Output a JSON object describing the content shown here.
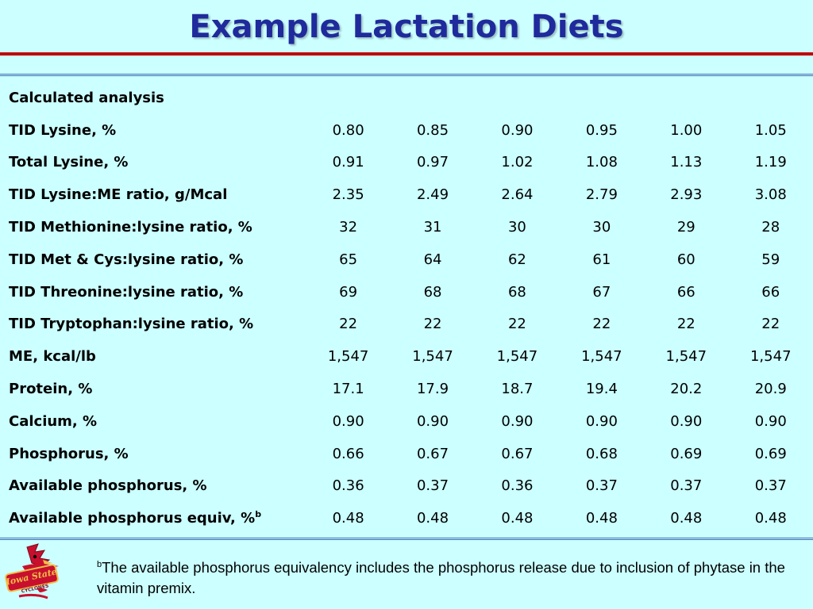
{
  "slide": {
    "title": "Example Lactation Diets"
  },
  "table": {
    "section_label": "Calculated analysis",
    "rows": [
      {
        "label": "TID Lysine, %",
        "values": [
          "0.80",
          "0.85",
          "0.90",
          "0.95",
          "1.00",
          "1.05"
        ]
      },
      {
        "label": "Total Lysine, %",
        "values": [
          "0.91",
          "0.97",
          "1.02",
          "1.08",
          "1.13",
          "1.19"
        ]
      },
      {
        "label": "TID Lysine:ME ratio, g/Mcal",
        "values": [
          "2.35",
          "2.49",
          "2.64",
          "2.79",
          "2.93",
          "3.08"
        ]
      },
      {
        "label": "TID Methionine:lysine ratio, %",
        "values": [
          "32",
          "31",
          "30",
          "30",
          "29",
          "28"
        ]
      },
      {
        "label": "TID Met & Cys:lysine ratio, %",
        "values": [
          "65",
          "64",
          "62",
          "61",
          "60",
          "59"
        ]
      },
      {
        "label": "TID Threonine:lysine ratio, %",
        "values": [
          "69",
          "68",
          "68",
          "67",
          "66",
          "66"
        ]
      },
      {
        "label": "TID Tryptophan:lysine ratio, %",
        "values": [
          "22",
          "22",
          "22",
          "22",
          "22",
          "22"
        ]
      },
      {
        "label": "ME, kcal/lb",
        "values": [
          "1,547",
          "1,547",
          "1,547",
          "1,547",
          "1,547",
          "1,547"
        ]
      },
      {
        "label": "Protein, %",
        "values": [
          "17.1",
          "17.9",
          "18.7",
          "19.4",
          "20.2",
          "20.9"
        ]
      },
      {
        "label": "Calcium, %",
        "values": [
          "0.90",
          "0.90",
          "0.90",
          "0.90",
          "0.90",
          "0.90"
        ]
      },
      {
        "label": "Phosphorus, %",
        "values": [
          "0.66",
          "0.67",
          "0.67",
          "0.68",
          "0.69",
          "0.69"
        ]
      },
      {
        "label": "Available phosphorus, %",
        "values": [
          "0.36",
          "0.37",
          "0.36",
          "0.37",
          "0.37",
          "0.37"
        ]
      },
      {
        "label": "Available phosphorus equiv, %",
        "sup": "b",
        "values": [
          "0.48",
          "0.48",
          "0.48",
          "0.48",
          "0.48",
          "0.48"
        ]
      }
    ]
  },
  "footnote": {
    "marker": "b",
    "text": "The available phosphorus equivalency includes the phosphorus release due to inclusion of phytase in the vitamin premix."
  },
  "logo": {
    "icon": "iowa-state-cyclones-logo-icon",
    "text_line1": "Iowa State",
    "text_line2": "CYCLONES"
  },
  "colors": {
    "background": "#ccffff",
    "title": "#1f2a9c",
    "title_rule": "#c00000",
    "table_rule": "#3d6fb5"
  }
}
